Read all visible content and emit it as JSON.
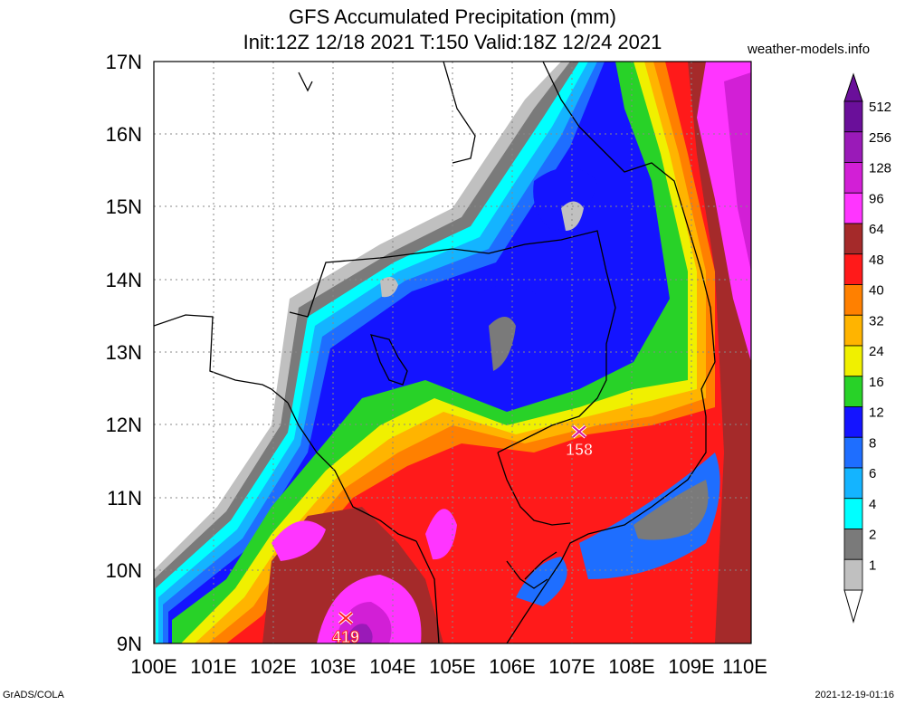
{
  "title": "GFS Accumulated Precipitation (mm)",
  "subtitle": "Init:12Z 12/18 2021 T:150 Valid:18Z 12/24 2021",
  "site": "weather-models.info",
  "footer_left": "GrADS/COLA",
  "footer_right": "2021-12-19-01:16",
  "axes": {
    "lat_labels": [
      "17N",
      "16N",
      "15N",
      "14N",
      "13N",
      "12N",
      "11N",
      "10N",
      "9N"
    ],
    "lon_labels": [
      "100E",
      "101E",
      "102E",
      "103E",
      "104E",
      "105E",
      "106E",
      "107E",
      "108E",
      "109E",
      "110E"
    ],
    "lat_range": [
      9,
      17
    ],
    "lon_range": [
      100,
      110
    ]
  },
  "legend": {
    "levels": [
      "512",
      "256",
      "128",
      "96",
      "64",
      "48",
      "40",
      "32",
      "24",
      "16",
      "12",
      "8",
      "6",
      "4",
      "2",
      "1"
    ],
    "colors": [
      "#6a0f9a",
      "#9a1ab8",
      "#d21fd6",
      "#ff35ff",
      "#a52a2a",
      "#ff1a1a",
      "#ff8000",
      "#ffb400",
      "#f0f000",
      "#28d228",
      "#1414ff",
      "#1e6eff",
      "#14b4ff",
      "#00ffff",
      "#7a7a7a",
      "#c0c0c0"
    ]
  },
  "markers": [
    {
      "label": "158",
      "lon": 107.1,
      "lat": 11.9
    },
    {
      "label": "419",
      "lon": 103.2,
      "lat": 9.3
    }
  ]
}
